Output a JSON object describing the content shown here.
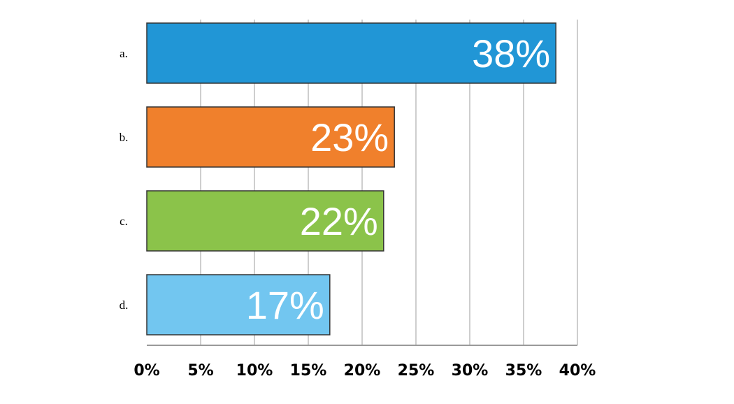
{
  "chart_data": {
    "type": "bar",
    "orientation": "horizontal",
    "categories": [
      "a.",
      "b.",
      "c.",
      "d."
    ],
    "values": [
      38,
      23,
      22,
      17
    ],
    "value_labels": [
      "38%",
      "23%",
      "22%",
      "17%"
    ],
    "bar_colors": [
      "#2196d6",
      "#f0802c",
      "#8bc34a",
      "#72c6f0"
    ],
    "xlim": [
      0,
      40
    ],
    "xticks": [
      0,
      5,
      10,
      15,
      20,
      25,
      30,
      35,
      40
    ],
    "xtick_labels": [
      "0%",
      "5%",
      "10%",
      "15%",
      "20%",
      "25%",
      "30%",
      "35%",
      "40%"
    ],
    "grid": "vertical",
    "legend": "none"
  }
}
